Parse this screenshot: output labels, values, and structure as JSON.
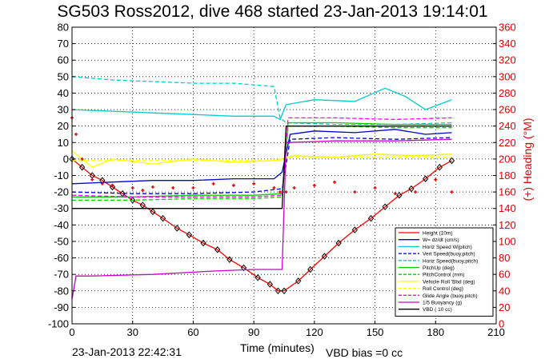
{
  "chart_data": {
    "type": "line",
    "title": "SG503 Ross2012, dive 468 started 23-Jan-2013 19:14:01",
    "xlabel": "Time (minutes)",
    "ylabel_right": "(+) Heading (°M)",
    "xlim": [
      0,
      210
    ],
    "ylim_left": [
      -100,
      80
    ],
    "ylim_right": [
      0,
      360
    ],
    "xticks": [
      0,
      30,
      60,
      90,
      120,
      150,
      180,
      210
    ],
    "yticks_left": [
      -100,
      -90,
      -80,
      -70,
      -60,
      -50,
      -40,
      -30,
      -20,
      -10,
      0,
      10,
      20,
      30,
      40,
      50,
      60,
      70,
      80
    ],
    "yticks_right": [
      0,
      20,
      40,
      60,
      80,
      100,
      120,
      140,
      160,
      180,
      200,
      220,
      240,
      260,
      280,
      300,
      320,
      340,
      360
    ],
    "grid": true,
    "legend_position": "bottom-right",
    "series": [
      {
        "name": "Height (10m)",
        "color": "#ff0000",
        "style": "solid-markers",
        "x": [
          0,
          5,
          10,
          15,
          20,
          25,
          30,
          35,
          40,
          45,
          52,
          58,
          65,
          72,
          78,
          85,
          92,
          98,
          102,
          105,
          112,
          118,
          125,
          132,
          140,
          148,
          155,
          162,
          168,
          175,
          182,
          188
        ],
        "y": [
          0,
          -5,
          -10,
          -13,
          -17,
          -21,
          -25,
          -28,
          -32,
          -36,
          -42,
          -46,
          -51,
          -55,
          -61,
          -66,
          -72,
          -76,
          -80,
          -80,
          -74,
          -67,
          -59,
          -51,
          -43,
          -36,
          -29,
          -22,
          -18,
          -12,
          -5,
          -1
        ]
      },
      {
        "name": "W= dz/dt (cm/s)",
        "color": "#0000cc",
        "style": "solid",
        "x": [
          0,
          20,
          40,
          60,
          80,
          100,
          104,
          108,
          120,
          140,
          160,
          175,
          188
        ],
        "y": [
          -15,
          -14,
          -13,
          -13,
          -12,
          -12,
          -8,
          15,
          17,
          16,
          18,
          15,
          16
        ]
      },
      {
        "name": "Horiz Speed W(pitch)",
        "color": "#00cccc",
        "style": "solid",
        "x": [
          0,
          20,
          40,
          60,
          80,
          100,
          103,
          106,
          120,
          140,
          155,
          165,
          175,
          188
        ],
        "y": [
          30,
          29,
          28,
          27,
          26,
          26,
          24,
          33,
          36,
          35,
          43,
          38,
          30,
          36
        ]
      },
      {
        "name": "Vert Speed(buoy,pitch)",
        "color": "#0000cc",
        "style": "dashed",
        "x": [
          0,
          30,
          60,
          90,
          104,
          108,
          130,
          160,
          188
        ],
        "y": [
          -20,
          -21,
          -21,
          -20,
          -18,
          12,
          13,
          12,
          13
        ]
      },
      {
        "name": "Horiz Speed(buoy,pitch)",
        "color": "#00cccc",
        "style": "dashed",
        "x": [
          0,
          20,
          40,
          60,
          80,
          100,
          103,
          106,
          130,
          160,
          188
        ],
        "y": [
          50,
          48,
          47,
          46,
          46,
          44,
          25,
          22,
          21,
          21,
          22
        ]
      },
      {
        "name": "PitchUp (deg)",
        "color": "#00cc00",
        "style": "solid",
        "x": [
          0,
          30,
          60,
          90,
          104,
          107,
          130,
          160,
          188
        ],
        "y": [
          -23,
          -23,
          -22,
          -22,
          -21,
          22,
          22,
          21,
          21
        ]
      },
      {
        "name": "PitchControl (mm)",
        "color": "#00cc00",
        "style": "dashed",
        "x": [
          0,
          30,
          60,
          90,
          104,
          107,
          130,
          160,
          188
        ],
        "y": [
          -25,
          -25,
          -24,
          -24,
          -23,
          20,
          20,
          19,
          19
        ]
      },
      {
        "name": "Vehicle Roll 'Bbd (deg)",
        "color": "#ffff00",
        "style": "solid",
        "x": [
          0,
          10,
          20,
          40,
          60,
          80,
          100,
          110,
          130,
          150,
          170,
          188
        ],
        "y": [
          5,
          -5,
          0,
          -3,
          0,
          -2,
          -1,
          2,
          1,
          3,
          2,
          3
        ]
      },
      {
        "name": "Roll Control (deg)",
        "color": "#ffff00",
        "style": "dashed",
        "x": [
          0,
          30,
          60,
          90,
          104,
          107,
          130,
          160,
          188
        ],
        "y": [
          -1,
          -1,
          -1,
          -1,
          -1,
          1,
          1,
          1,
          1
        ]
      },
      {
        "name": "Glide Angle (buoy,pitch)",
        "color": "#ff00ff",
        "style": "dashed",
        "x": [
          0,
          30,
          60,
          90,
          104,
          107,
          130,
          160,
          188
        ],
        "y": [
          -22,
          -23,
          -23,
          -23,
          -22,
          25,
          25,
          24,
          25
        ]
      },
      {
        "name": "1/5 Buoyancy (g)",
        "color": "#cc00cc",
        "style": "solid",
        "x": [
          0,
          2,
          10,
          40,
          70,
          90,
          104,
          106,
          130,
          160,
          188
        ],
        "y": [
          -85,
          -71,
          -71,
          -70,
          -68,
          -67,
          -67,
          10,
          11,
          11,
          12
        ]
      },
      {
        "name": "VBD ( 10 cc)",
        "color": "#000000",
        "style": "solid",
        "x": [
          0,
          30,
          60,
          90,
          104,
          106,
          130,
          160,
          188
        ],
        "y": [
          -30,
          -30,
          -30,
          -30,
          -30,
          20,
          20,
          20,
          20
        ]
      },
      {
        "name": "Heading",
        "color": "#dd0000",
        "style": "markers",
        "axis": "right",
        "x": [
          0,
          2,
          5,
          10,
          15,
          20,
          30,
          35,
          40,
          50,
          60,
          70,
          80,
          90,
          100,
          103,
          106,
          110,
          120,
          130,
          140,
          150,
          160,
          170,
          180,
          188
        ],
        "y": [
          250,
          230,
          200,
          175,
          170,
          168,
          165,
          162,
          166,
          165,
          165,
          170,
          168,
          170,
          165,
          160,
          160,
          165,
          168,
          172,
          160,
          165,
          158,
          160,
          175,
          160
        ]
      }
    ]
  },
  "labels": {
    "timestamp": "23-Jan-2013 22:42:31",
    "vbd_bias": "VBD bias =0 cc"
  }
}
